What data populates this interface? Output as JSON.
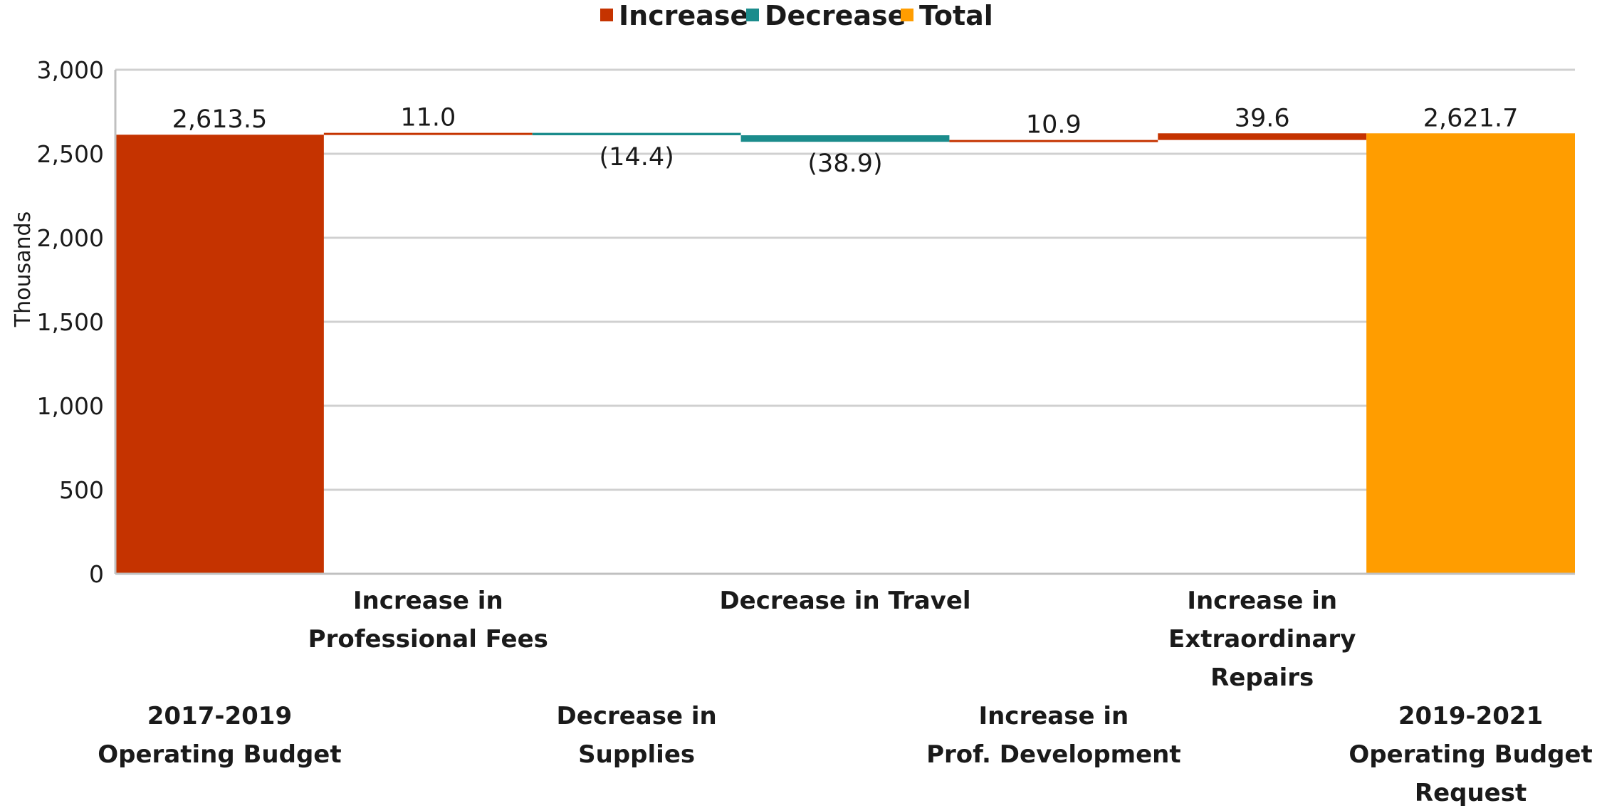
{
  "chart_data": {
    "type": "bar",
    "subtype": "waterfall",
    "title": "",
    "ylabel": "Thousands",
    "xlabel": "",
    "ylim": [
      0,
      3000
    ],
    "yticks": [
      0,
      500,
      1000,
      1500,
      2000,
      2500,
      3000
    ],
    "ytick_labels": [
      "0",
      "500",
      "1,000",
      "1,500",
      "2,000",
      "2,500",
      "3,000"
    ],
    "grid": true,
    "legend": {
      "position": "top-center",
      "entries": [
        {
          "name": "Increase",
          "color": "#C53300"
        },
        {
          "name": "Decrease",
          "color": "#1B8C8C"
        },
        {
          "name": "Total",
          "color": "#FF9D00"
        }
      ]
    },
    "categories": [
      [
        "2017-2019",
        "Operating Budget"
      ],
      [
        "Increase in",
        "Professional Fees"
      ],
      [
        "Decrease in",
        "Supplies"
      ],
      [
        "Decrease in Travel"
      ],
      [
        "Increase in",
        "Prof. Development"
      ],
      [
        "Increase in",
        "Extraordinary",
        "Repairs"
      ],
      [
        "2019-2021",
        "Operating Budget",
        "Request"
      ]
    ],
    "category_rows": [
      1,
      0,
      1,
      0,
      1,
      0,
      1
    ],
    "values": [
      2613.5,
      11.0,
      -14.4,
      -38.9,
      10.9,
      39.6,
      2621.7
    ],
    "labels": [
      "2,613.5",
      "11.0",
      "(14.4)",
      "(38.9)",
      "10.9",
      "39.6",
      "2,621.7"
    ],
    "kinds": [
      "increase",
      "increase",
      "decrease",
      "decrease",
      "increase",
      "increase",
      "total"
    ]
  }
}
